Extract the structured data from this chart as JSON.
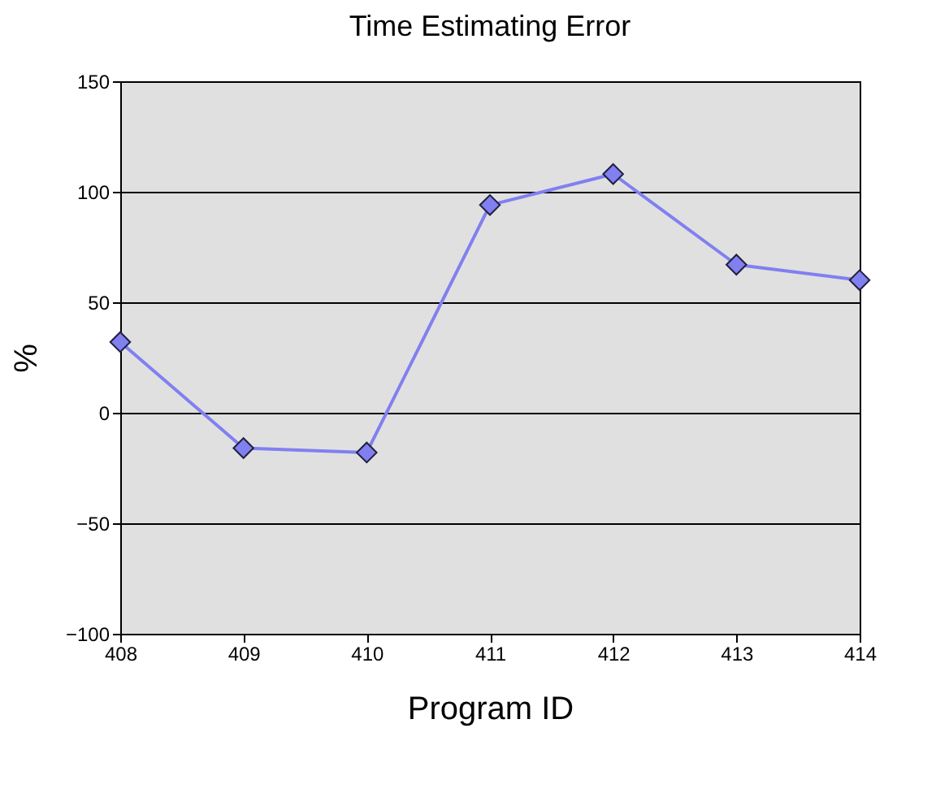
{
  "chart_data": {
    "type": "line",
    "title": "Time Estimating Error",
    "xlabel": "Program ID",
    "ylabel": "%",
    "x": [
      408,
      409,
      410,
      411,
      412,
      413,
      414
    ],
    "series": [
      {
        "color": "#8080f0",
        "values": [
          32,
          -16,
          -18,
          94,
          108,
          67,
          60
        ]
      }
    ],
    "xlim": [
      408,
      414
    ],
    "xticks": [
      408,
      409,
      410,
      411,
      412,
      413,
      414
    ],
    "ylim": [
      -100,
      150
    ],
    "yticks": [
      -100,
      -50,
      0,
      50,
      100,
      150
    ],
    "grid": "y",
    "marker": "diamond",
    "line_style": "solid"
  }
}
